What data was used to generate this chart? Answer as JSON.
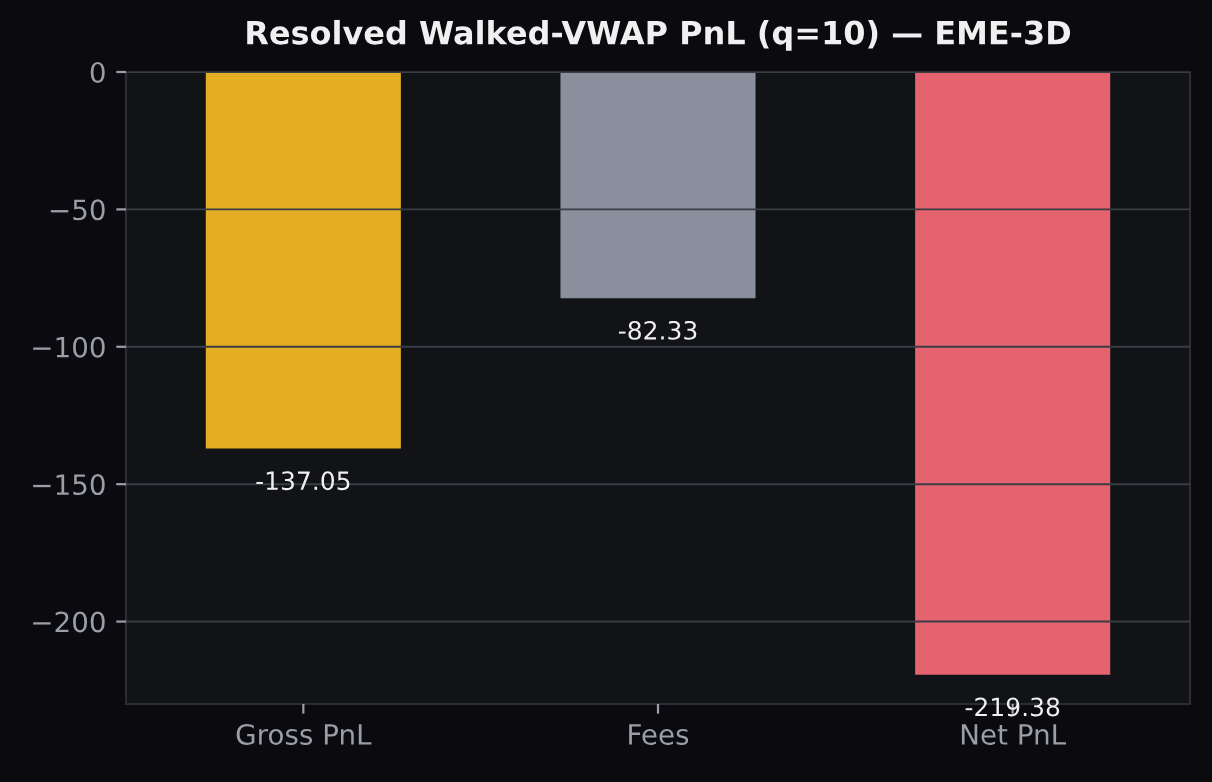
{
  "chart_data": {
    "type": "bar",
    "title": "Resolved Walked-VWAP PnL (q=10) — EME-3D",
    "categories": [
      "Gross PnL",
      "Fees",
      "Net PnL"
    ],
    "values": [
      -137.05,
      -82.33,
      -219.38
    ],
    "colors": [
      "#e3ae24",
      "#8a8f9e",
      "#e5636f"
    ],
    "ylim": [
      -230,
      0
    ],
    "yticks": [
      0,
      {
        "value": -50,
        "label": "−50"
      },
      {
        "value": -100,
        "label": "−100"
      },
      {
        "value": -150,
        "label": "−150"
      },
      {
        "value": -200,
        "label": "−200"
      }
    ],
    "grid": "y",
    "data_labels": true
  }
}
